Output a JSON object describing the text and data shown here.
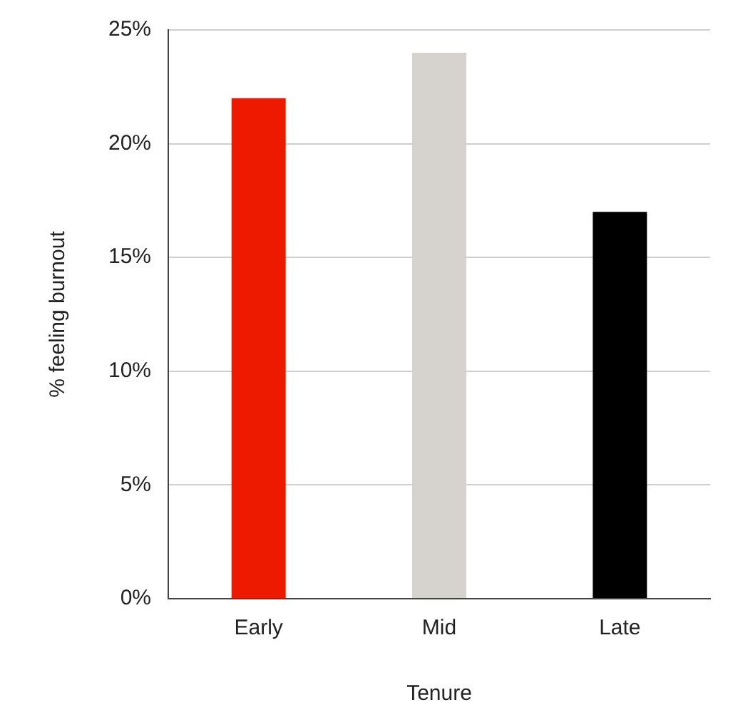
{
  "chart_data": {
    "type": "bar",
    "xlabel": "Tenure",
    "ylabel": "% feeling burnout",
    "categories": [
      "Early",
      "Mid",
      "Late"
    ],
    "values": [
      22,
      24,
      17
    ],
    "colors": [
      "#ee1a00",
      "#d6d2cd",
      "#000000"
    ],
    "ylim": [
      0,
      25
    ],
    "yticks": [
      {
        "value": 0,
        "label": "0%"
      },
      {
        "value": 5,
        "label": "5%"
      },
      {
        "value": 10,
        "label": "10%"
      },
      {
        "value": 15,
        "label": "15%"
      },
      {
        "value": 20,
        "label": "20%"
      },
      {
        "value": 25,
        "label": "25%"
      }
    ],
    "grid": "y",
    "legend": false
  }
}
